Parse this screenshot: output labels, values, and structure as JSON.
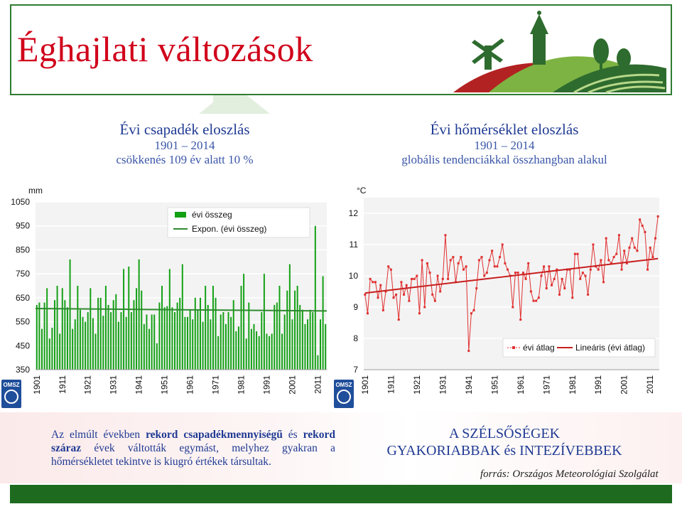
{
  "title": "Éghajlati változások",
  "left_caption": {
    "title": "Évi csapadék eloszlás",
    "years": "1901 – 2014",
    "sub": "csökkenés 109 év alatt 10 %"
  },
  "right_caption": {
    "title": "Évi hőmérséklet eloszlás",
    "years": "1901 – 2014",
    "sub": "globális tendenciákkal összhangban alakul"
  },
  "bottom_text": {
    "p1": "Az elmúlt években ",
    "b1": "rekord csapadékmennyiségű",
    "p2": " és ",
    "b2": "rekord száraz",
    "p3": " évek váltották egymást, melyhez gyakran a hőmérsékletet tekintve is kiugró értékek társultak."
  },
  "extremes_title_1": "A SZÉLSŐSÉGEK",
  "extremes_title_2": "GYAKORIABBAK és INTEZÍVEBBEK",
  "source": "forrás: Országos Meteorológiai Szolgálat",
  "omsz_label": "OMSZ",
  "colors": {
    "bar": "#12a014",
    "trend_green": "#2e8b2e",
    "temp_line": "#e03030",
    "trend_red": "#c81e1e",
    "title_red": "#d0021b",
    "caption_blue": "#1f3a93"
  },
  "chart_data": [
    {
      "type": "bar",
      "unit_label": "mm",
      "legend": [
        "évi összeg",
        "Expon. (évi összeg)"
      ],
      "legend_position": "top-right",
      "ylim": [
        350,
        1050
      ],
      "yticks": [
        350,
        450,
        550,
        650,
        750,
        850,
        950,
        1050
      ],
      "xticks": [
        "1901",
        "1911",
        "1921",
        "1931",
        "1941",
        "1951",
        "1961",
        "1971",
        "1981",
        "1991",
        "2001",
        "2011"
      ],
      "x_start": 1901,
      "values": [
        620,
        630,
        520,
        630,
        690,
        480,
        525,
        640,
        700,
        500,
        690,
        640,
        610,
        810,
        520,
        560,
        700,
        600,
        570,
        550,
        590,
        690,
        565,
        500,
        650,
        650,
        575,
        700,
        620,
        590,
        640,
        665,
        550,
        590,
        770,
        570,
        780,
        590,
        640,
        690,
        810,
        680,
        540,
        580,
        520,
        580,
        580,
        460,
        630,
        700,
        610,
        615,
        770,
        610,
        590,
        630,
        650,
        790,
        570,
        570,
        600,
        560,
        650,
        600,
        650,
        550,
        700,
        620,
        560,
        700,
        650,
        490,
        580,
        590,
        540,
        590,
        570,
        640,
        510,
        530,
        700,
        750,
        480,
        630,
        520,
        540,
        510,
        490,
        590,
        750,
        500,
        490,
        500,
        620,
        630,
        700,
        500,
        580,
        680,
        790,
        560,
        680,
        700,
        620,
        600,
        540,
        560,
        600,
        590,
        950,
        410,
        560,
        740,
        540
      ],
      "trend": [
        605,
        595
      ]
    },
    {
      "type": "line",
      "unit_label": "°C",
      "legend": [
        "évi átlag",
        "Lineáris (évi átlag)"
      ],
      "legend_position": "bottom-right",
      "ylim": [
        7,
        12.5
      ],
      "yticks": [
        7,
        8,
        9,
        10,
        11,
        12
      ],
      "xticks": [
        "1901",
        "1911",
        "1921",
        "1931",
        "1941",
        "1951",
        "1961",
        "1971",
        "1981",
        "1991",
        "2001",
        "2011"
      ],
      "x_start": 1901,
      "values": [
        9.4,
        8.8,
        9.9,
        9.8,
        9.8,
        9.3,
        9.7,
        8.9,
        9.5,
        10.3,
        10.2,
        9.3,
        9.4,
        8.6,
        9.8,
        9.4,
        9.7,
        9.2,
        9.9,
        9.9,
        10.0,
        8.8,
        10.5,
        9.0,
        10.4,
        10.1,
        9.4,
        9.2,
        10.0,
        9.5,
        9.9,
        11.3,
        9.9,
        10.5,
        10.6,
        9.8,
        10.4,
        10.6,
        10.2,
        10.3,
        7.6,
        8.8,
        8.9,
        9.6,
        10.5,
        10.6,
        10.0,
        10.1,
        10.5,
        10.8,
        10.3,
        10.3,
        10.6,
        11.0,
        10.4,
        10.2,
        10.0,
        9.0,
        10.1,
        10.1,
        8.6,
        10.1,
        9.9,
        10.4,
        9.5,
        9.2,
        9.2,
        9.3,
        10.0,
        10.3,
        9.6,
        10.3,
        9.7,
        9.9,
        10.2,
        9.4,
        9.9,
        9.6,
        10.2,
        10.2,
        9.3,
        10.7,
        10.7,
        9.9,
        10.1,
        10.0,
        9.4,
        10.2,
        11.0,
        10.3,
        10.2,
        10.5,
        9.8,
        11.2,
        10.5,
        10.4,
        10.6,
        10.7,
        11.3,
        10.2,
        10.8,
        10.4,
        10.9,
        11.2,
        10.9,
        10.8,
        11.8,
        11.6,
        11.4,
        10.2,
        10.9,
        10.6,
        11.2,
        11.9
      ],
      "trend": [
        9.45,
        10.55
      ]
    }
  ]
}
